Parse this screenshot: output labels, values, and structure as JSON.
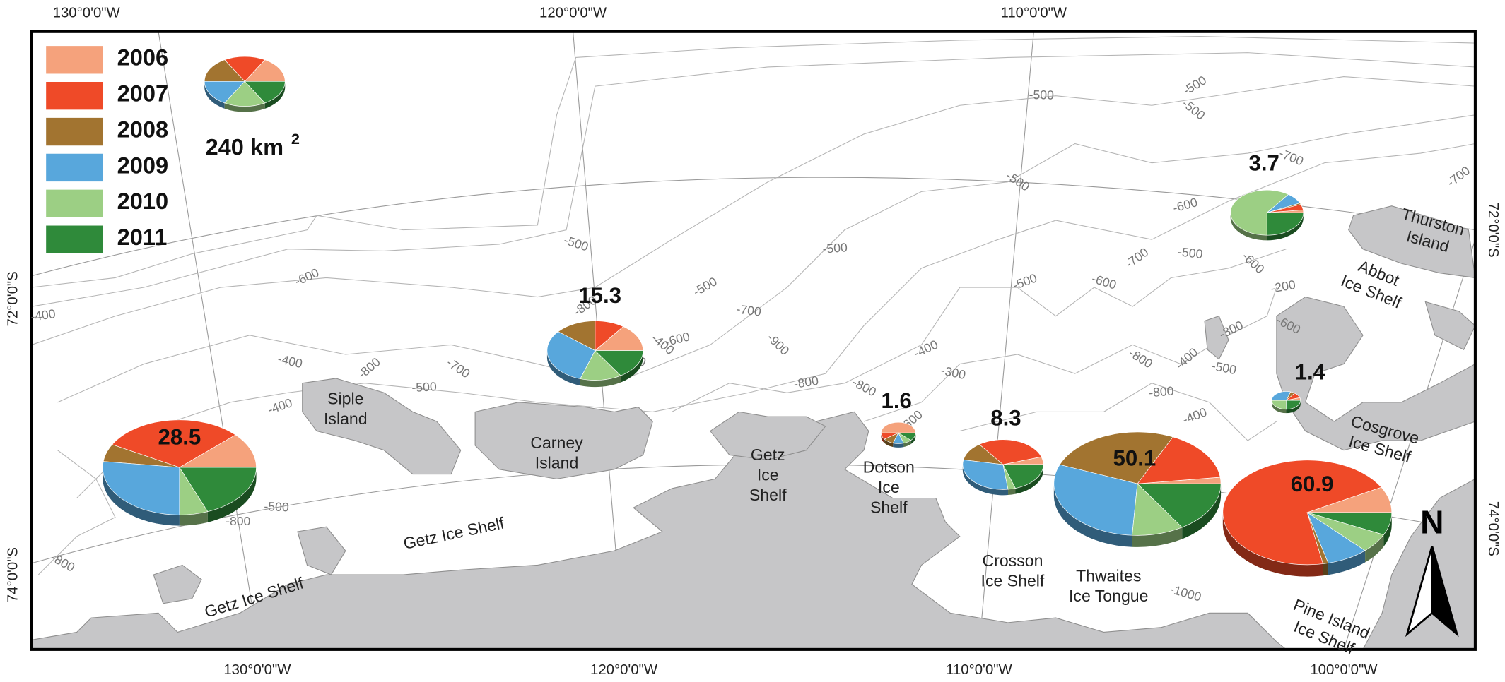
{
  "coordinates": {
    "top": [
      "130°0'0\"W",
      "120°0'0\"W",
      "110°0'0\"W"
    ],
    "bottom": [
      "130°0'0\"W",
      "120°0'0\"W",
      "110°0'0\"W",
      "100°0'0\"W"
    ],
    "left": [
      "72°0'0\"S",
      "74°0'0\"S"
    ],
    "right": [
      "72°0'0\"S",
      "74°0'0\"S"
    ]
  },
  "legend": {
    "years": [
      {
        "label": "2006",
        "color": "#f5a27c"
      },
      {
        "label": "2007",
        "color": "#ef4a28"
      },
      {
        "label": "2008",
        "color": "#a27430"
      },
      {
        "label": "2009",
        "color": "#58a7dc"
      },
      {
        "label": "2010",
        "color": "#9ccf84"
      },
      {
        "label": "2011",
        "color": "#2f8a3a"
      }
    ],
    "scale_label": "240 km",
    "scale_superscript": "2"
  },
  "pies": [
    {
      "total": 28.5,
      "shares": [
        12,
        30,
        6,
        27,
        6,
        19
      ]
    },
    {
      "total": 15.3,
      "shares": [
        15,
        10,
        14,
        31,
        14,
        16
      ]
    },
    {
      "total": 1.6,
      "shares": [
        50,
        10,
        10,
        10,
        8,
        12
      ]
    },
    {
      "total": 8.3,
      "shares": [
        5,
        30,
        12,
        30,
        3,
        20
      ]
    },
    {
      "total": 50.1,
      "shares": [
        2,
        16,
        26,
        30,
        10,
        16
      ]
    },
    {
      "total": 60.9,
      "shares": [
        8,
        70,
        1,
        8,
        6,
        7
      ]
    },
    {
      "total": 3.7,
      "shares": [
        2,
        4,
        1,
        8,
        60,
        25
      ]
    },
    {
      "total": 1.4,
      "shares": [
        5,
        10,
        5,
        30,
        25,
        25
      ]
    }
  ],
  "places": [
    {
      "lines": [
        "Siple",
        "Island"
      ]
    },
    {
      "lines": [
        "Carney",
        "Island"
      ]
    },
    {
      "lines": [
        "Getz",
        "Ice",
        "Shelf"
      ]
    },
    {
      "lines": [
        "Getz Ice Shelf"
      ]
    },
    {
      "lines": [
        "Getz Ice Shelf"
      ]
    },
    {
      "lines": [
        "Dotson",
        "Ice",
        "Shelf"
      ]
    },
    {
      "lines": [
        "Crosson",
        "Ice Shelf"
      ]
    },
    {
      "lines": [
        "Thwaites",
        "Ice Tongue"
      ]
    },
    {
      "lines": [
        "Pine Island",
        "Ice Shelf"
      ]
    },
    {
      "lines": [
        "Cosgrove",
        "Ice Shelf"
      ]
    },
    {
      "lines": [
        "Abbot",
        "Ice Shelf"
      ]
    },
    {
      "lines": [
        "Thurston",
        "Island"
      ]
    }
  ],
  "north_label": "N",
  "contour_labels": [
    "-500",
    "-400",
    "-800",
    "-600",
    "-400",
    "-800",
    "-500",
    "-700",
    "-400",
    "-500",
    "-800",
    "-500",
    "-400",
    "-600",
    "-600",
    "-500",
    "-700",
    "-900",
    "-800",
    "-800",
    "-400",
    "-300",
    "-600",
    "-500",
    "-500",
    "-500",
    "-600",
    "-700",
    "-500",
    "-500",
    "-600",
    "-700",
    "-500",
    "-500",
    "-600",
    "-200",
    "-600",
    "-300",
    "-500",
    "-400",
    "-800",
    "-800",
    "-400",
    "-1000",
    "-700",
    "-800"
  ]
}
